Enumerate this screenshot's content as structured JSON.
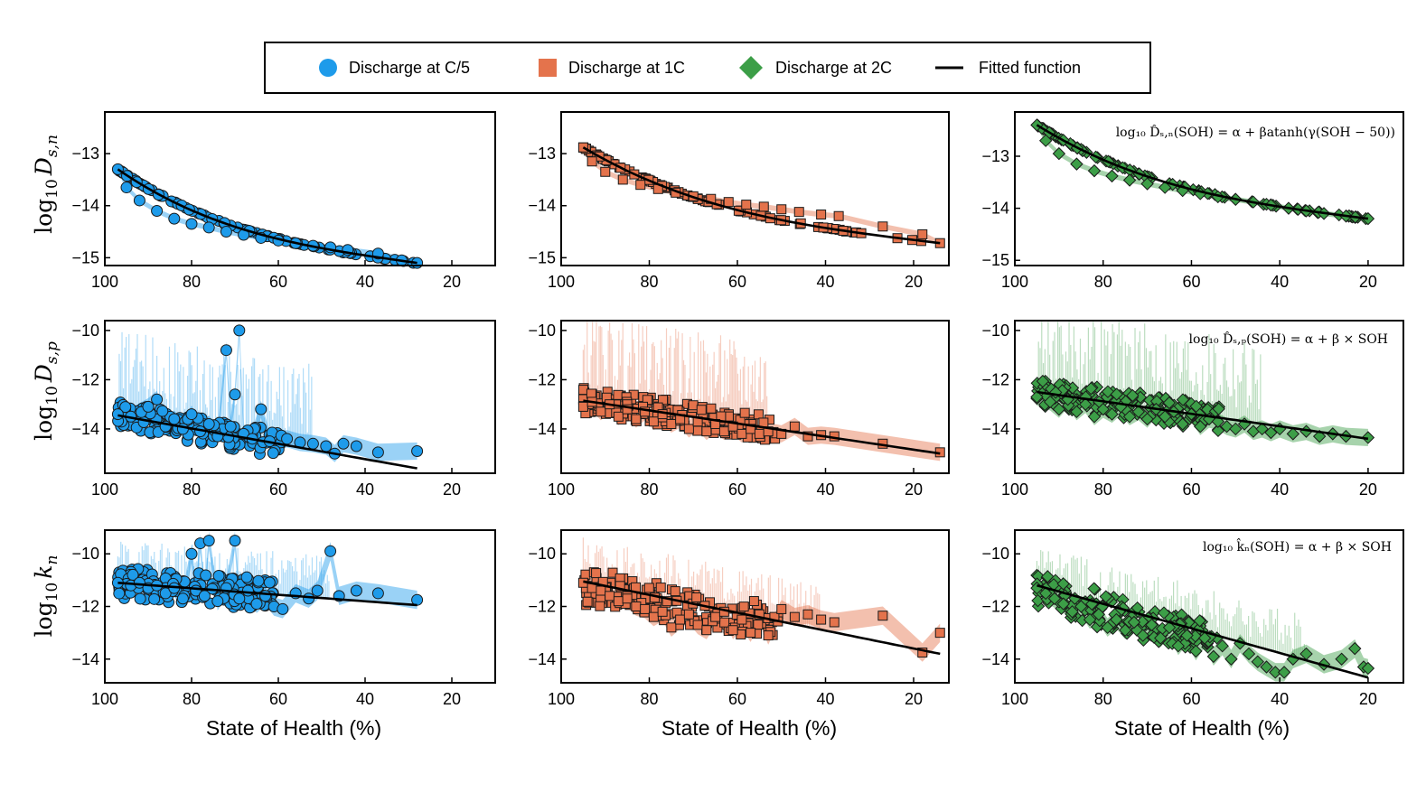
{
  "legend": {
    "items": [
      {
        "label": "Discharge at C/5",
        "marker": "circle",
        "color": "#1E9BEA"
      },
      {
        "label": "Discharge at 1C",
        "marker": "square",
        "color": "#E4734C"
      },
      {
        "label": "Discharge at 2C",
        "marker": "diamond",
        "color": "#3C9E47"
      },
      {
        "label": "Fitted function",
        "marker": "line",
        "color": "#000000"
      }
    ]
  },
  "row_labels": [
    {
      "base": "log",
      "sub10": "10",
      "sym": "D",
      "sub": "s,n"
    },
    {
      "base": "log",
      "sub10": "10",
      "sym": "D",
      "sub": "s,p"
    },
    {
      "base": "log",
      "sub10": "10",
      "sym": "k",
      "sub": "n"
    }
  ],
  "x_axis_label": "State of Health (%)",
  "equations": [
    "log₁₀ D̂ₛ,ₙ(SOH) = α + βatanh(γ(SOH − 50))",
    "log₁₀ D̂ₛ,ₚ(SOH) = α + β × SOH",
    "log₁₀ k̂ₙ(SOH) = α + β × SOH"
  ],
  "colors": {
    "c5": "#1E9BEA",
    "c1": "#E4734C",
    "c2": "#3C9E47",
    "fit": "#000000"
  },
  "chart_data": [
    {
      "type": "scatter",
      "row": 0,
      "col": 0,
      "series": "Discharge at C/5",
      "xlim": [
        100,
        10
      ],
      "ylim": [
        -15.15,
        -12.2
      ],
      "xticks": [
        100,
        80,
        60,
        40,
        20
      ],
      "yticks": [
        -13,
        -14,
        -15
      ],
      "fit": {
        "form": "atanh",
        "x_start": 97,
        "x_end": 28,
        "y_start": -13.3,
        "y_end": -15.1
      },
      "points": [
        [
          97,
          -13.3
        ],
        [
          95,
          -13.65
        ],
        [
          92,
          -13.9
        ],
        [
          88,
          -14.1
        ],
        [
          84,
          -14.25
        ],
        [
          80,
          -14.35
        ],
        [
          76,
          -14.42
        ],
        [
          72,
          -14.5
        ],
        [
          68,
          -14.56
        ],
        [
          64,
          -14.62
        ],
        [
          60,
          -14.67
        ],
        [
          56,
          -14.72
        ],
        [
          52,
          -14.77
        ],
        [
          48,
          -14.8
        ],
        [
          44,
          -14.85
        ],
        [
          37,
          -14.92
        ],
        [
          28,
          -15.1
        ]
      ]
    },
    {
      "type": "scatter",
      "row": 0,
      "col": 1,
      "series": "Discharge at 1C",
      "xlim": [
        100,
        12
      ],
      "ylim": [
        -15.15,
        -12.2
      ],
      "xticks": [
        100,
        80,
        60,
        40,
        20
      ],
      "yticks": [
        -13,
        -14,
        -15
      ],
      "fit": {
        "form": "atanh",
        "x_start": 95,
        "x_end": 14,
        "y_start": -12.88,
        "y_end": -14.72
      },
      "points": [
        [
          95,
          -12.88
        ],
        [
          93,
          -13.15
        ],
        [
          90,
          -13.35
        ],
        [
          86,
          -13.5
        ],
        [
          82,
          -13.6
        ],
        [
          78,
          -13.68
        ],
        [
          74,
          -13.75
        ],
        [
          70,
          -13.82
        ],
        [
          66,
          -13.87
        ],
        [
          62,
          -13.93
        ],
        [
          58,
          -13.98
        ],
        [
          54,
          -14.02
        ],
        [
          50,
          -14.07
        ],
        [
          46,
          -14.12
        ],
        [
          41,
          -14.17
        ],
        [
          37,
          -14.2
        ],
        [
          27,
          -14.4
        ],
        [
          18,
          -14.55
        ],
        [
          14,
          -14.72
        ]
      ]
    },
    {
      "type": "scatter",
      "row": 0,
      "col": 2,
      "series": "Discharge at 2C",
      "xlim": [
        100,
        12
      ],
      "ylim": [
        -15.1,
        -12.15
      ],
      "xticks": [
        100,
        80,
        60,
        40,
        20
      ],
      "yticks": [
        -13,
        -14,
        -15
      ],
      "fit": {
        "form": "atanh",
        "x_start": 95,
        "x_end": 20,
        "y_start": -12.4,
        "y_end": -14.2
      },
      "points": [
        [
          95,
          -12.4
        ],
        [
          93,
          -12.7
        ],
        [
          90,
          -12.95
        ],
        [
          86,
          -13.15
        ],
        [
          82,
          -13.28
        ],
        [
          78,
          -13.38
        ],
        [
          74,
          -13.46
        ],
        [
          70,
          -13.53
        ],
        [
          66,
          -13.6
        ],
        [
          62,
          -13.66
        ],
        [
          58,
          -13.72
        ],
        [
          54,
          -13.78
        ],
        [
          50,
          -13.83
        ],
        [
          46,
          -13.88
        ],
        [
          42,
          -13.94
        ],
        [
          38,
          -14.0
        ],
        [
          34,
          -14.05
        ],
        [
          30,
          -14.1
        ],
        [
          25,
          -14.15
        ],
        [
          20,
          -14.2
        ]
      ]
    },
    {
      "type": "scatter",
      "row": 1,
      "col": 0,
      "series": "Discharge at C/5",
      "xlim": [
        100,
        10
      ],
      "ylim": [
        -15.8,
        -9.6
      ],
      "xticks": [
        100,
        80,
        60,
        40,
        20
      ],
      "yticks": [
        -10,
        -12,
        -14
      ],
      "fit": {
        "form": "linear",
        "x_start": 97,
        "x_end": 28,
        "y_start": -13.45,
        "y_end": -15.6
      },
      "points": [
        [
          97,
          -13.4
        ],
        [
          94,
          -13.5
        ],
        [
          90,
          -13.1
        ],
        [
          88,
          -12.8
        ],
        [
          86,
          -13.9
        ],
        [
          84,
          -13.6
        ],
        [
          82,
          -14.0
        ],
        [
          80,
          -13.4
        ],
        [
          78,
          -14.1
        ],
        [
          76,
          -13.8
        ],
        [
          74,
          -14.3
        ],
        [
          72,
          -10.8
        ],
        [
          71,
          -13.9
        ],
        [
          70,
          -12.6
        ],
        [
          69,
          -10.0
        ],
        [
          68,
          -14.2
        ],
        [
          66,
          -14.4
        ],
        [
          64,
          -13.2
        ],
        [
          62,
          -14.5
        ],
        [
          58,
          -14.4
        ],
        [
          55,
          -14.55
        ],
        [
          52,
          -14.6
        ],
        [
          49,
          -14.7
        ],
        [
          47,
          -15.0
        ],
        [
          45,
          -14.6
        ],
        [
          42,
          -14.7
        ],
        [
          37,
          -14.95
        ],
        [
          28,
          -14.9
        ]
      ]
    },
    {
      "type": "scatter",
      "row": 1,
      "col": 1,
      "series": "Discharge at 1C",
      "xlim": [
        100,
        12
      ],
      "ylim": [
        -15.8,
        -9.6
      ],
      "xticks": [
        100,
        80,
        60,
        40,
        20
      ],
      "yticks": [
        -10,
        -12,
        -14
      ],
      "fit": {
        "form": "linear",
        "x_start": 95,
        "x_end": 14,
        "y_start": -12.85,
        "y_end": -15.0
      },
      "points": [
        [
          95,
          -13.1
        ],
        [
          93,
          -12.9
        ],
        [
          91,
          -13.3
        ],
        [
          89,
          -13.0
        ],
        [
          87,
          -13.5
        ],
        [
          85,
          -13.2
        ],
        [
          83,
          -13.6
        ],
        [
          81,
          -13.3
        ],
        [
          79,
          -13.7
        ],
        [
          77,
          -13.4
        ],
        [
          75,
          -13.8
        ],
        [
          73,
          -13.6
        ],
        [
          71,
          -14.0
        ],
        [
          69,
          -13.7
        ],
        [
          67,
          -14.1
        ],
        [
          65,
          -13.8
        ],
        [
          63,
          -14.1
        ],
        [
          61,
          -13.9
        ],
        [
          59,
          -14.2
        ],
        [
          57,
          -14.0
        ],
        [
          55,
          -14.2
        ],
        [
          53,
          -14.1
        ],
        [
          50,
          -14.2
        ],
        [
          47,
          -13.9
        ],
        [
          44,
          -14.3
        ],
        [
          41,
          -14.25
        ],
        [
          38,
          -14.3
        ],
        [
          27,
          -14.6
        ],
        [
          14,
          -14.95
        ]
      ]
    },
    {
      "type": "scatter",
      "row": 1,
      "col": 2,
      "series": "Discharge at 2C",
      "xlim": [
        100,
        12
      ],
      "ylim": [
        -15.8,
        -9.6
      ],
      "xticks": [
        100,
        80,
        60,
        40,
        20
      ],
      "yticks": [
        -10,
        -12,
        -14
      ],
      "fit": {
        "form": "linear",
        "x_start": 95,
        "x_end": 20,
        "y_start": -12.5,
        "y_end": -14.4
      },
      "points": [
        [
          95,
          -12.7
        ],
        [
          92,
          -12.9
        ],
        [
          90,
          -13.2
        ],
        [
          88,
          -12.8
        ],
        [
          86,
          -13.3
        ],
        [
          84,
          -13.0
        ],
        [
          82,
          -13.5
        ],
        [
          80,
          -13.2
        ],
        [
          78,
          -13.4
        ],
        [
          76,
          -13.1
        ],
        [
          74,
          -13.5
        ],
        [
          72,
          -13.3
        ],
        [
          70,
          -13.6
        ],
        [
          68,
          -13.2
        ],
        [
          66,
          -13.5
        ],
        [
          64,
          -13.3
        ],
        [
          62,
          -13.8
        ],
        [
          60,
          -13.4
        ],
        [
          58,
          -13.9
        ],
        [
          56,
          -13.6
        ],
        [
          54,
          -13.7
        ],
        [
          52,
          -13.9
        ],
        [
          50,
          -14.0
        ],
        [
          48,
          -13.8
        ],
        [
          46,
          -14.1
        ],
        [
          44,
          -14.0
        ],
        [
          42,
          -14.15
        ],
        [
          40,
          -14.0
        ],
        [
          37,
          -14.2
        ],
        [
          34,
          -14.1
        ],
        [
          31,
          -14.3
        ],
        [
          28,
          -14.2
        ],
        [
          25,
          -14.3
        ],
        [
          20,
          -14.35
        ]
      ]
    },
    {
      "type": "scatter",
      "row": 2,
      "col": 0,
      "series": "Discharge at C/5",
      "xlim": [
        100,
        10
      ],
      "ylim": [
        -14.9,
        -9.1
      ],
      "xticks": [
        100,
        80,
        60,
        40,
        20
      ],
      "yticks": [
        -10,
        -12,
        -14
      ],
      "fit": {
        "form": "linear",
        "x_start": 97,
        "x_end": 28,
        "y_start": -11.1,
        "y_end": -11.95
      },
      "points": [
        [
          97,
          -11.1
        ],
        [
          94,
          -11.2
        ],
        [
          92,
          -11.1
        ],
        [
          90,
          -11.3
        ],
        [
          88,
          -11.2
        ],
        [
          86,
          -11.5
        ],
        [
          84,
          -11.3
        ],
        [
          82,
          -11.7
        ],
        [
          80,
          -10.0
        ],
        [
          79,
          -11.4
        ],
        [
          78,
          -9.6
        ],
        [
          77,
          -11.6
        ],
        [
          76,
          -9.5
        ],
        [
          74,
          -11.8
        ],
        [
          72,
          -11.3
        ],
        [
          70,
          -9.5
        ],
        [
          69,
          -11.7
        ],
        [
          67,
          -11.4
        ],
        [
          65,
          -11.9
        ],
        [
          63,
          -11.6
        ],
        [
          61,
          -12.0
        ],
        [
          59,
          -12.1
        ],
        [
          56,
          -11.5
        ],
        [
          53,
          -11.7
        ],
        [
          51,
          -11.4
        ],
        [
          48,
          -9.9
        ],
        [
          46,
          -11.6
        ],
        [
          42,
          -11.4
        ],
        [
          37,
          -11.5
        ],
        [
          28,
          -11.75
        ]
      ]
    },
    {
      "type": "scatter",
      "row": 2,
      "col": 1,
      "series": "Discharge at 1C",
      "xlim": [
        100,
        12
      ],
      "ylim": [
        -14.9,
        -9.1
      ],
      "xticks": [
        100,
        80,
        60,
        40,
        20
      ],
      "yticks": [
        -10,
        -12,
        -14
      ],
      "fit": {
        "form": "linear",
        "x_start": 95,
        "x_end": 14,
        "y_start": -11.05,
        "y_end": -13.8
      },
      "points": [
        [
          95,
          -11.1
        ],
        [
          93,
          -11.3
        ],
        [
          91,
          -11.4
        ],
        [
          89,
          -11.6
        ],
        [
          87,
          -11.8
        ],
        [
          85,
          -11.7
        ],
        [
          83,
          -12.0
        ],
        [
          81,
          -12.1
        ],
        [
          79,
          -12.4
        ],
        [
          77,
          -12.2
        ],
        [
          75,
          -12.8
        ],
        [
          73,
          -12.5
        ],
        [
          71,
          -12.3
        ],
        [
          69,
          -12.7
        ],
        [
          67,
          -12.9
        ],
        [
          65,
          -12.4
        ],
        [
          63,
          -12.2
        ],
        [
          61,
          -12.9
        ],
        [
          59,
          -12.5
        ],
        [
          57,
          -13.0
        ],
        [
          55,
          -12.3
        ],
        [
          53,
          -13.1
        ],
        [
          50,
          -12.1
        ],
        [
          47,
          -12.4
        ],
        [
          44,
          -12.3
        ],
        [
          41,
          -12.5
        ],
        [
          38,
          -12.6
        ],
        [
          27,
          -12.35
        ],
        [
          18,
          -13.75
        ],
        [
          14,
          -13.0
        ]
      ]
    },
    {
      "type": "scatter",
      "row": 2,
      "col": 2,
      "series": "Discharge at 2C",
      "xlim": [
        100,
        12
      ],
      "ylim": [
        -14.9,
        -9.1
      ],
      "xticks": [
        100,
        80,
        60,
        40,
        20
      ],
      "yticks": [
        -10,
        -12,
        -14
      ],
      "fit": {
        "form": "linear",
        "x_start": 95,
        "x_end": 20,
        "y_start": -11.2,
        "y_end": -14.7
      },
      "points": [
        [
          95,
          -11.3
        ],
        [
          93,
          -11.5
        ],
        [
          91,
          -11.7
        ],
        [
          89,
          -11.9
        ],
        [
          87,
          -12.2
        ],
        [
          85,
          -12.0
        ],
        [
          83,
          -12.5
        ],
        [
          81,
          -12.3
        ],
        [
          79,
          -12.8
        ],
        [
          77,
          -12.5
        ],
        [
          75,
          -12.9
        ],
        [
          73,
          -12.6
        ],
        [
          71,
          -13.1
        ],
        [
          69,
          -12.7
        ],
        [
          67,
          -13.2
        ],
        [
          65,
          -12.8
        ],
        [
          63,
          -13.5
        ],
        [
          61,
          -13.1
        ],
        [
          59,
          -13.7
        ],
        [
          57,
          -13.2
        ],
        [
          55,
          -13.9
        ],
        [
          53,
          -13.5
        ],
        [
          51,
          -14.0
        ],
        [
          49,
          -13.4
        ],
        [
          47,
          -13.8
        ],
        [
          45,
          -14.1
        ],
        [
          43,
          -14.3
        ],
        [
          41,
          -14.5
        ],
        [
          39,
          -14.5
        ],
        [
          37,
          -14.0
        ],
        [
          34,
          -13.8
        ],
        [
          30,
          -14.2
        ],
        [
          26,
          -14.0
        ],
        [
          23,
          -13.6
        ],
        [
          21,
          -14.3
        ],
        [
          20,
          -14.35
        ]
      ]
    }
  ]
}
